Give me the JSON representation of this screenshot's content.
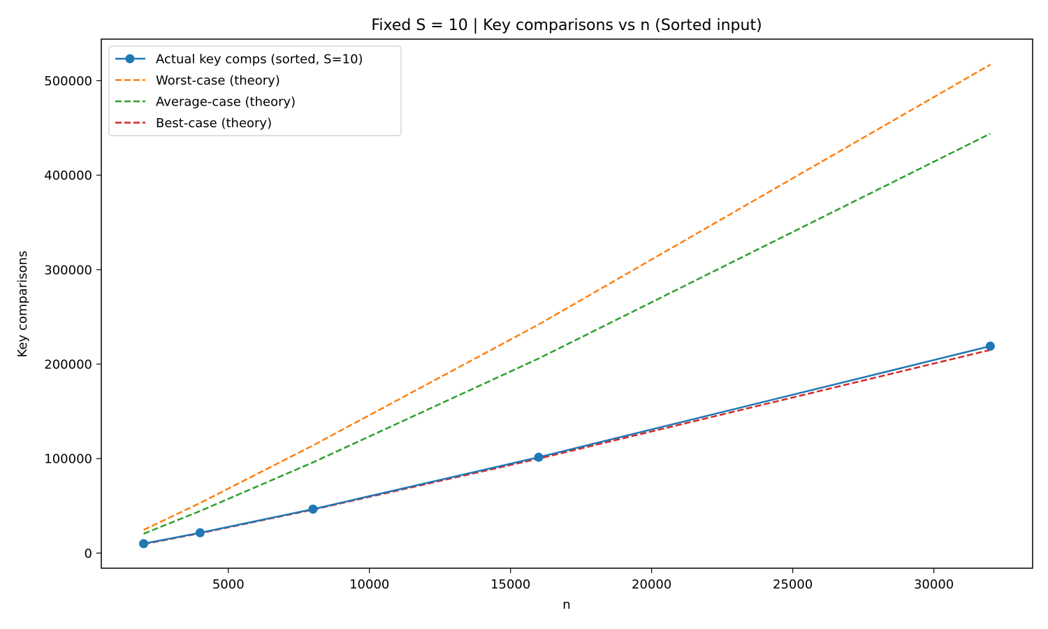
{
  "chart_data": {
    "type": "line",
    "title": "Fixed S = 10 | Key comparisons vs n (Sorted input)",
    "xlabel": "n",
    "ylabel": "Key comparisons",
    "xlim": [
      500,
      33500
    ],
    "ylim": [
      -16000,
      544000
    ],
    "xticks": [
      5000,
      10000,
      15000,
      20000,
      25000,
      30000
    ],
    "yticks": [
      0,
      100000,
      200000,
      300000,
      400000,
      500000
    ],
    "grid": false,
    "legend_position": "top-left",
    "x": [
      2000,
      4000,
      8000,
      16000,
      32000
    ],
    "series": [
      {
        "name": "Actual key comps (sorted, S=10)",
        "values": [
          10000,
          21500,
          46500,
          101500,
          219000
        ],
        "color": "#1f77b4",
        "style": "solid",
        "markers": true
      },
      {
        "name": "Worst-case (theory)",
        "values": [
          24500,
          53000,
          114000,
          242000,
          517000
        ],
        "color": "#ff7f0e",
        "style": "dashed",
        "markers": false
      },
      {
        "name": "Average-case (theory)",
        "values": [
          20500,
          44500,
          96000,
          206000,
          444000
        ],
        "color": "#2ca02c",
        "style": "dashed",
        "markers": false
      },
      {
        "name": "Best-case (theory)",
        "values": [
          9500,
          21000,
          46000,
          100000,
          215000
        ],
        "color": "#d62728",
        "style": "dashed",
        "markers": false
      }
    ]
  }
}
